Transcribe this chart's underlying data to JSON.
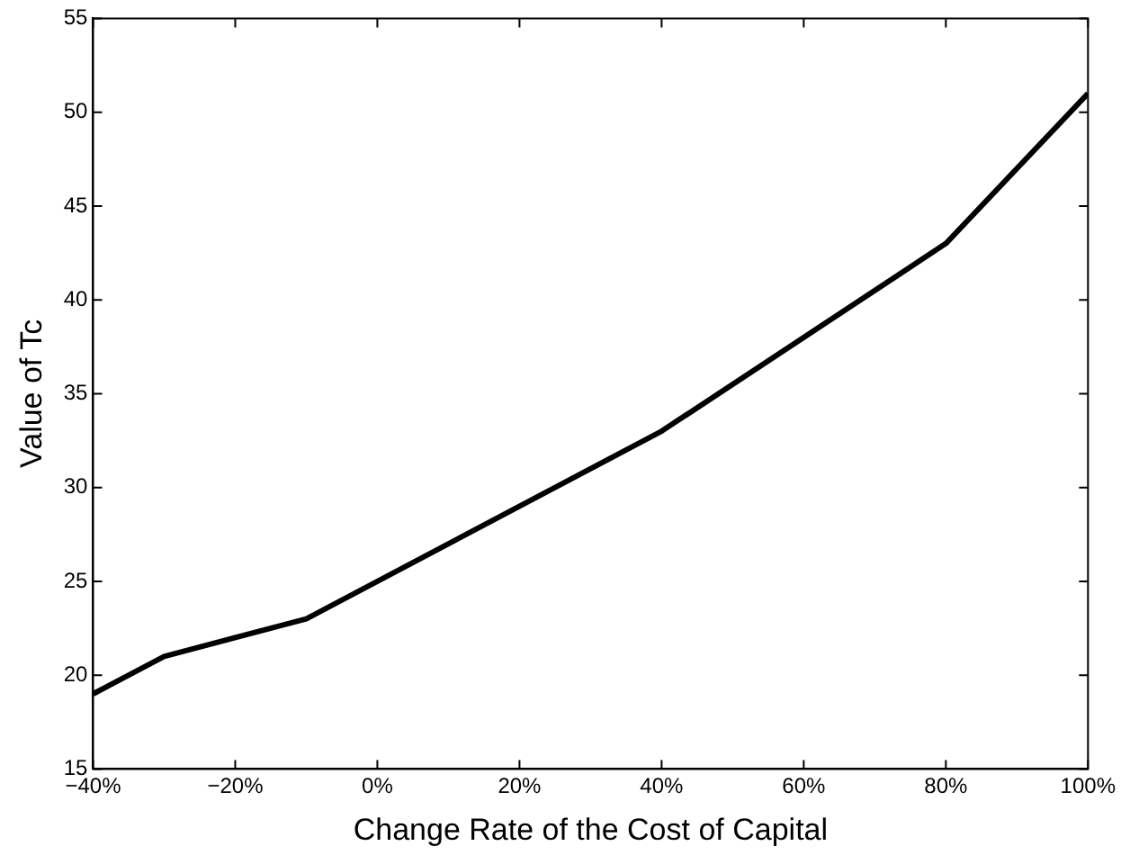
{
  "chart_data": {
    "type": "line",
    "xlabel": "Change Rate of the Cost of Capital",
    "ylabel": "Value of Tc",
    "x": [
      -40,
      -30,
      -10,
      40,
      80,
      100
    ],
    "series": [
      {
        "color": "#000000",
        "values": [
          19,
          21,
          23,
          33,
          43,
          51
        ]
      }
    ],
    "xlim": [
      -40,
      100
    ],
    "xticks": [
      {
        "value": -40,
        "label": "−40%"
      },
      {
        "value": -20,
        "label": "−20%"
      },
      {
        "value": 0,
        "label": "0%"
      },
      {
        "value": 20,
        "label": "20%"
      },
      {
        "value": 40,
        "label": "40%"
      },
      {
        "value": 60,
        "label": "60%"
      },
      {
        "value": 80,
        "label": "80%"
      },
      {
        "value": 100,
        "label": "100%"
      }
    ],
    "ylim": [
      15,
      55
    ],
    "yticks": [
      15,
      20,
      25,
      30,
      35,
      40,
      45,
      50,
      55
    ],
    "grid": false,
    "legend": false,
    "marker": "none",
    "line_style": "solid"
  }
}
